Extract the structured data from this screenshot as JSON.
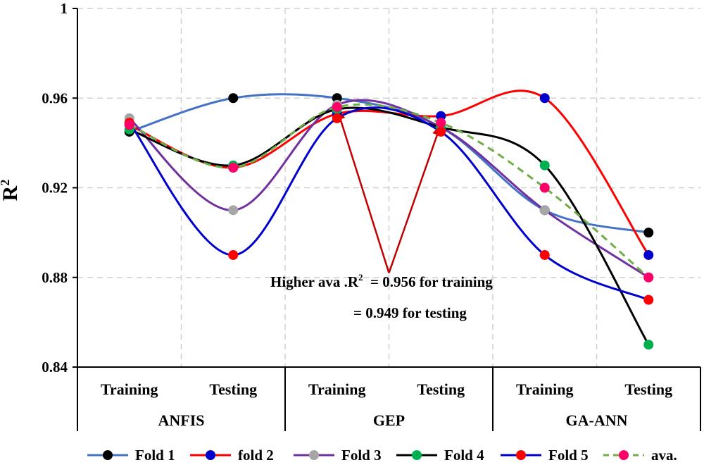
{
  "chart_data": {
    "type": "line",
    "ylabel": "R",
    "ylabel_sup": "2",
    "ylim": [
      0.84,
      1.0
    ],
    "yticks": [
      "0.84",
      "0.88",
      "0.92",
      "0.96",
      "1"
    ],
    "ytick_values": [
      0.84,
      0.88,
      0.92,
      0.96,
      1.0
    ],
    "grid": "dashed",
    "x": [
      "Training",
      "Testing",
      "Training",
      "Testing",
      "Training",
      "Testing"
    ],
    "groups": [
      {
        "label": "ANFIS",
        "start": 0,
        "end": 1
      },
      {
        "label": "GEP",
        "start": 2,
        "end": 3
      },
      {
        "label": "GA-ANN",
        "start": 4,
        "end": 5
      }
    ],
    "legend_position": "bottom",
    "series": [
      {
        "name": "Fold 1",
        "line_color": "#4472C4",
        "marker_color": "#000000",
        "dash": false,
        "values": [
          0.945,
          0.96,
          0.96,
          0.947,
          0.91,
          0.9
        ]
      },
      {
        "name": "fold 2",
        "line_color": "#FF0000",
        "marker_color": "#0000CC",
        "dash": false,
        "values": [
          0.948,
          0.929,
          0.953,
          0.952,
          0.96,
          0.89
        ]
      },
      {
        "name": "Fold 3",
        "line_color": "#7030A0",
        "marker_color": "#A6A6A6",
        "dash": false,
        "values": [
          0.951,
          0.91,
          0.957,
          0.947,
          0.91,
          0.88
        ]
      },
      {
        "name": "Fold 4",
        "line_color": "#000000",
        "marker_color": "#00B050",
        "dash": false,
        "values": [
          0.946,
          0.93,
          0.955,
          0.947,
          0.93,
          0.85
        ]
      },
      {
        "name": "Fold 5",
        "line_color": "#0000CC",
        "marker_color": "#FF0000",
        "dash": false,
        "values": [
          0.949,
          0.89,
          0.951,
          0.945,
          0.89,
          0.87
        ]
      },
      {
        "name": "ava.",
        "line_color": "#70AD47",
        "marker_color": "#FF0066",
        "dash": true,
        "values": [
          0.948,
          0.929,
          0.956,
          0.949,
          0.92,
          0.88
        ]
      }
    ],
    "annotation": {
      "line1_prefix": "Higher ava .R",
      "line1_sup": "2",
      "line1_suffix": "  = 0.956 for training",
      "line2": "= 0.949 for testing",
      "arrow_color": "#C00000",
      "arrow_vertex_value": 0.882,
      "arrow_targets": [
        2,
        3
      ]
    }
  }
}
